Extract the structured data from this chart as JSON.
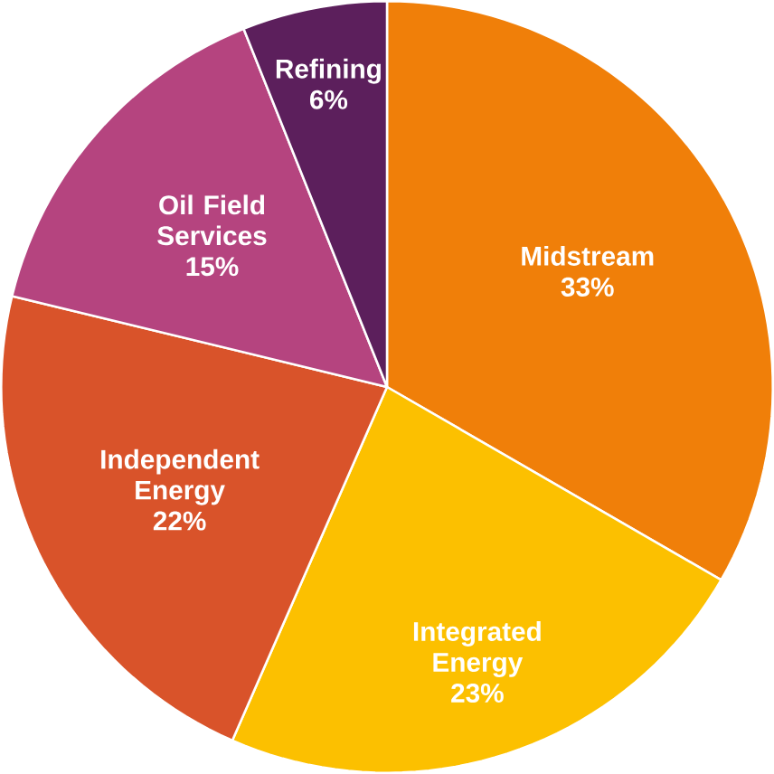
{
  "chart_data": {
    "type": "pie",
    "categories": [
      "Midstream",
      "Integrated Energy",
      "Independent Energy",
      "Oil Field Services",
      "Refining"
    ],
    "values": [
      33,
      23,
      22,
      15,
      6
    ],
    "value_labels": [
      "33%",
      "23%",
      "22%",
      "15%",
      "6%"
    ],
    "colors": [
      "#f07f09",
      "#fcc000",
      "#d9532a",
      "#b5447f",
      "#5c1f5c"
    ]
  }
}
